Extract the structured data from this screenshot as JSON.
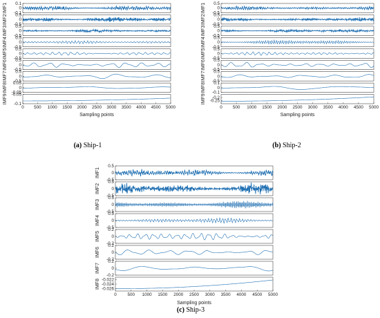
{
  "colors": {
    "signal": "#1f6fb2",
    "axes": "#222222"
  },
  "chart_data": [
    {
      "type": "line",
      "caption_tag": "(a)",
      "caption_text": "Ship-1",
      "xlabel": "Sampling points",
      "xlim": [
        0,
        5000
      ],
      "xticks": [
        "0",
        "500",
        "1000",
        "1500",
        "2000",
        "2500",
        "3000",
        "3500",
        "4000",
        "4500",
        "5000"
      ],
      "series": [
        {
          "name": "IMF1",
          "ylim": [
            -0.1,
            0.1
          ],
          "ticks": [
            "0.1",
            "0",
            "-0.1"
          ],
          "amp": 0.04,
          "freq": 1.6,
          "noise": true
        },
        {
          "name": "IMF2",
          "ylim": [
            -0.5,
            0.5
          ],
          "ticks": [
            "0.5",
            "0",
            "-0.5"
          ],
          "amp": 0.2,
          "freq": 0.7,
          "noise": true
        },
        {
          "name": "IMF3",
          "ylim": [
            -0.5,
            0.5
          ],
          "ticks": [
            "0.5",
            "0",
            "-0.5"
          ],
          "amp": 0.1,
          "freq": 0.3,
          "noise": true
        },
        {
          "name": "IMF4",
          "ylim": [
            -0.5,
            0.5
          ],
          "ticks": [
            "0.5",
            "0",
            "-0.5"
          ],
          "amp": 0.18,
          "freq": 0.06,
          "noise": false
        },
        {
          "name": "IMF5",
          "ylim": [
            -0.5,
            0.5
          ],
          "ticks": [
            "0.5",
            "0",
            "-0.5"
          ],
          "amp": 0.2,
          "freq": 0.03,
          "noise": false
        },
        {
          "name": "IMF6",
          "ylim": [
            -0.5,
            0.5
          ],
          "ticks": [
            "0.5",
            "0",
            "-0.5"
          ],
          "amp": 0.35,
          "freq": 0.012,
          "noise": false
        },
        {
          "name": "IMF7",
          "ylim": [
            -0.5,
            0.5
          ],
          "ticks": [
            "0.5",
            "0",
            "-0.5"
          ],
          "amp": 0.3,
          "freq": 0.005,
          "noise": false
        },
        {
          "name": "IMF8",
          "ylim": [
            -0.05,
            0.05
          ],
          "ticks": [
            "0.05",
            "0",
            "-0.05"
          ],
          "amp": 0.02,
          "freq": 0.0018,
          "noise": false
        },
        {
          "name": "IMF9",
          "ylim": [
            -0.1,
            -0.05
          ],
          "ticks": [
            "-0.05",
            "-0.1"
          ],
          "trend": [
            -0.085,
            -0.07
          ]
        }
      ]
    },
    {
      "type": "line",
      "caption_tag": "(b)",
      "caption_text": "Ship-2",
      "xlabel": "Sampling points",
      "xlim": [
        0,
        5000
      ],
      "xticks": [
        "0",
        "500",
        "1000",
        "1500",
        "2000",
        "2500",
        "3000",
        "3500",
        "4000",
        "4500",
        "5000"
      ],
      "series": [
        {
          "name": "IMF1",
          "ylim": [
            -0.5,
            0.5
          ],
          "ticks": [
            "0.5",
            "0",
            "-0.5"
          ],
          "amp": 0.15,
          "freq": 1.6,
          "noise": true
        },
        {
          "name": "IMF2",
          "ylim": [
            -0.5,
            0.5
          ],
          "ticks": [
            "0.5",
            "0",
            "-0.5"
          ],
          "amp": 0.15,
          "freq": 0.7,
          "noise": true
        },
        {
          "name": "IMF3",
          "ylim": [
            -0.5,
            0.5
          ],
          "ticks": [
            "0.5",
            "0",
            "-0.5"
          ],
          "amp": 0.12,
          "freq": 0.3,
          "noise": true
        },
        {
          "name": "IMF4",
          "ylim": [
            -0.5,
            0.5
          ],
          "ticks": [
            "0.5",
            "0",
            "-0.5"
          ],
          "amp": 0.25,
          "freq": 0.09,
          "noise": false
        },
        {
          "name": "IMF5",
          "ylim": [
            -0.5,
            0.5
          ],
          "ticks": [
            "0.5",
            "0",
            "-0.5"
          ],
          "amp": 0.2,
          "freq": 0.035,
          "noise": false
        },
        {
          "name": "IMF6",
          "ylim": [
            -0.5,
            0.5
          ],
          "ticks": [
            "0.5",
            "0",
            "-0.5"
          ],
          "amp": 0.3,
          "freq": 0.013,
          "noise": false
        },
        {
          "name": "IMF7",
          "ylim": [
            -0.5,
            0.5
          ],
          "ticks": [
            "0.5",
            "0",
            "-0.5"
          ],
          "amp": 0.25,
          "freq": 0.006,
          "noise": false
        },
        {
          "name": "IMF8",
          "ylim": [
            -0.1,
            0.1
          ],
          "ticks": [
            "0.1",
            "0",
            "-0.1"
          ],
          "amp": 0.06,
          "freq": 0.0022,
          "noise": false
        },
        {
          "name": "IMF9",
          "ylim": [
            -0.3,
            -0.15
          ],
          "ticks": [
            "-0.2",
            "-0.25"
          ],
          "trend": [
            -0.26,
            -0.19
          ]
        }
      ]
    },
    {
      "type": "line",
      "caption_tag": "(c)",
      "caption_text": "Ship-3",
      "xlabel": "Sampling points",
      "xlim": [
        0,
        5000
      ],
      "xticks": [
        "0",
        "500",
        "1000",
        "1500",
        "2000",
        "2500",
        "3000",
        "3500",
        "4000",
        "4500",
        "5000"
      ],
      "series": [
        {
          "name": "IMF1",
          "ylim": [
            -0.5,
            0.5
          ],
          "ticks": [
            "0.5",
            "0",
            "-0.5"
          ],
          "amp": 0.2,
          "freq": 1.6,
          "noise": true
        },
        {
          "name": "IMF2",
          "ylim": [
            -0.5,
            0.5
          ],
          "ticks": [
            "0.5",
            "0",
            "-0.5"
          ],
          "amp": 0.3,
          "freq": 0.8,
          "noise": true
        },
        {
          "name": "IMF3",
          "ylim": [
            -0.5,
            0.5
          ],
          "ticks": [
            "0.5",
            "0",
            "-0.5"
          ],
          "amp": 0.3,
          "freq": 0.15,
          "noise": false
        },
        {
          "name": "IMF4",
          "ylim": [
            -0.5,
            0.5
          ],
          "ticks": [
            "0.5",
            "0",
            "-0.5"
          ],
          "amp": 0.2,
          "freq": 0.07,
          "noise": false
        },
        {
          "name": "IMF5",
          "ylim": [
            -0.2,
            0.2
          ],
          "ticks": [
            "0.2",
            "0",
            "-0.2"
          ],
          "amp": 0.12,
          "freq": 0.025,
          "noise": false
        },
        {
          "name": "IMF6",
          "ylim": [
            -0.2,
            0.2
          ],
          "ticks": [
            "0.2",
            "0",
            "-0.2"
          ],
          "amp": 0.1,
          "freq": 0.01,
          "noise": false
        },
        {
          "name": "IMF7",
          "ylim": [
            -0.2,
            0.2
          ],
          "ticks": [
            "0.2",
            "0",
            "-0.2"
          ],
          "amp": 0.1,
          "freq": 0.004,
          "noise": false
        },
        {
          "name": "IMF8",
          "ylim": [
            -0.027,
            -0.021
          ],
          "ticks": [
            "-0.022",
            "-0.024",
            "-0.026"
          ],
          "trend": [
            -0.026,
            -0.0222
          ]
        }
      ]
    }
  ]
}
